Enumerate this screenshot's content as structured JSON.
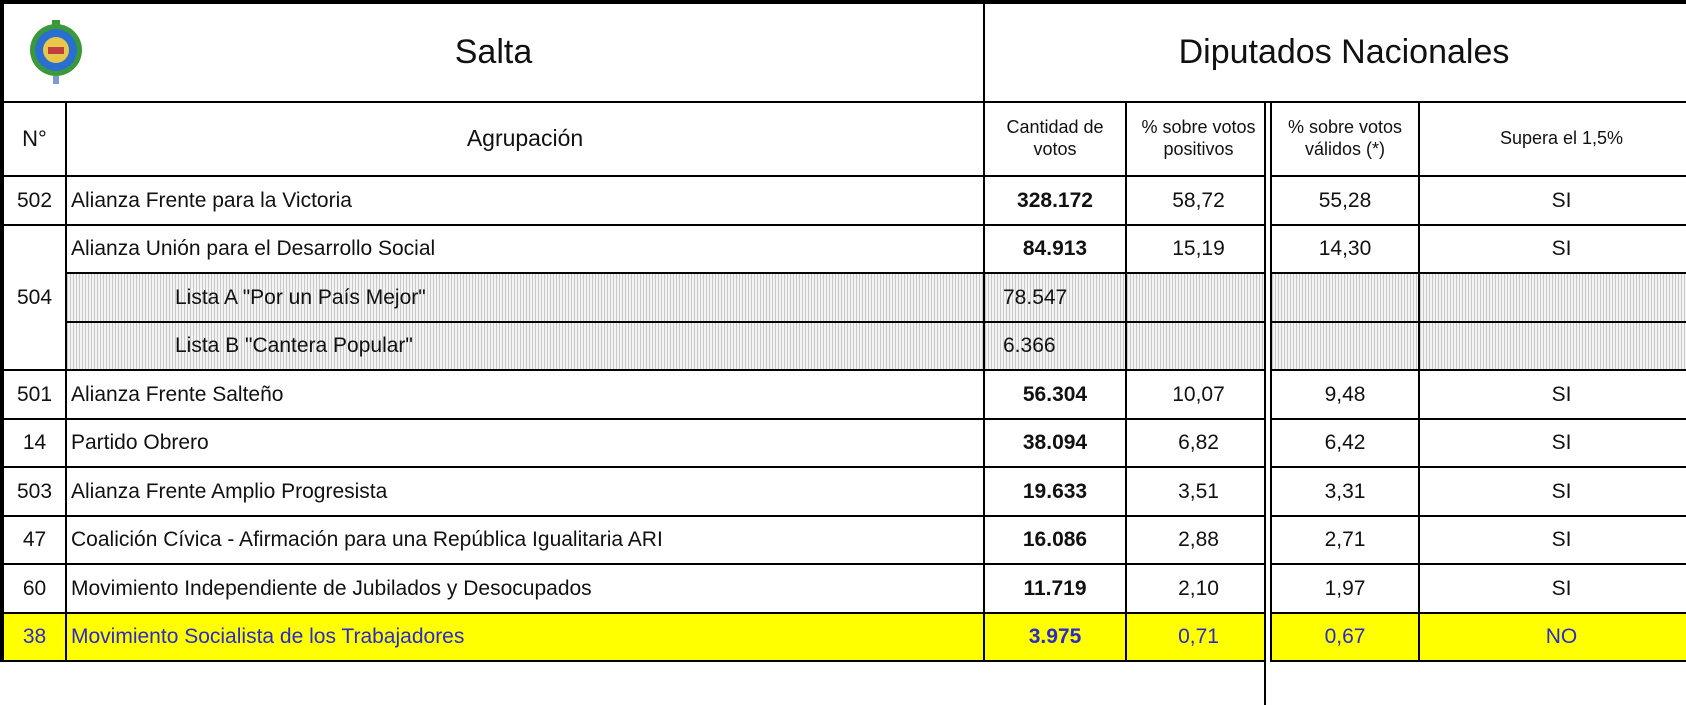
{
  "header": {
    "title": "Salta",
    "subtitle": "Diputados Nacionales"
  },
  "table": {
    "columns": [
      "N°",
      "Agrupación",
      "Cantidad de votos",
      "% sobre votos positivos",
      "% sobre votos válidos (*)",
      "Supera el 1,5%"
    ],
    "rows": [
      {
        "number": "502",
        "name": "Alianza Frente para la Victoria",
        "votes": "328.172",
        "positive": "58,72",
        "valid": "55,28",
        "exceeds": "SI"
      },
      {
        "number": "504",
        "name": "Alianza Unión para el Desarrollo Social",
        "votes": "84.913",
        "positive": "15,19",
        "valid": "14,30",
        "exceeds": "SI",
        "lists": [
          {
            "name": "Lista A \"Por un País Mejor\"",
            "votes": "78.547"
          },
          {
            "name": "Lista B \"Cantera Popular\"",
            "votes": "6.366"
          }
        ]
      },
      {
        "number": "501",
        "name": "Alianza Frente Salteño",
        "votes": "56.304",
        "positive": "10,07",
        "valid": "9,48",
        "exceeds": "SI"
      },
      {
        "number": "14",
        "name": "Partido Obrero",
        "votes": "38.094",
        "positive": "6,82",
        "valid": "6,42",
        "exceeds": "SI"
      },
      {
        "number": "503",
        "name": "Alianza Frente Amplio Progresista",
        "votes": "19.633",
        "positive": "3,51",
        "valid": "3,31",
        "exceeds": "SI"
      },
      {
        "number": "47",
        "name": "Coalición Cívica - Afirmación para una República Igualitaria ARI",
        "votes": "16.086",
        "positive": "2,88",
        "valid": "2,71",
        "exceeds": "SI"
      },
      {
        "number": "60",
        "name": "Movimiento Independiente de Jubilados y Desocupados",
        "votes": "11.719",
        "positive": "2,10",
        "valid": "1,97",
        "exceeds": "SI"
      },
      {
        "number": "38",
        "name": "Movimiento Socialista de los Trabajadores",
        "votes": "3.975",
        "positive": "0,71",
        "valid": "0,67",
        "exceeds": "NO"
      }
    ]
  }
}
